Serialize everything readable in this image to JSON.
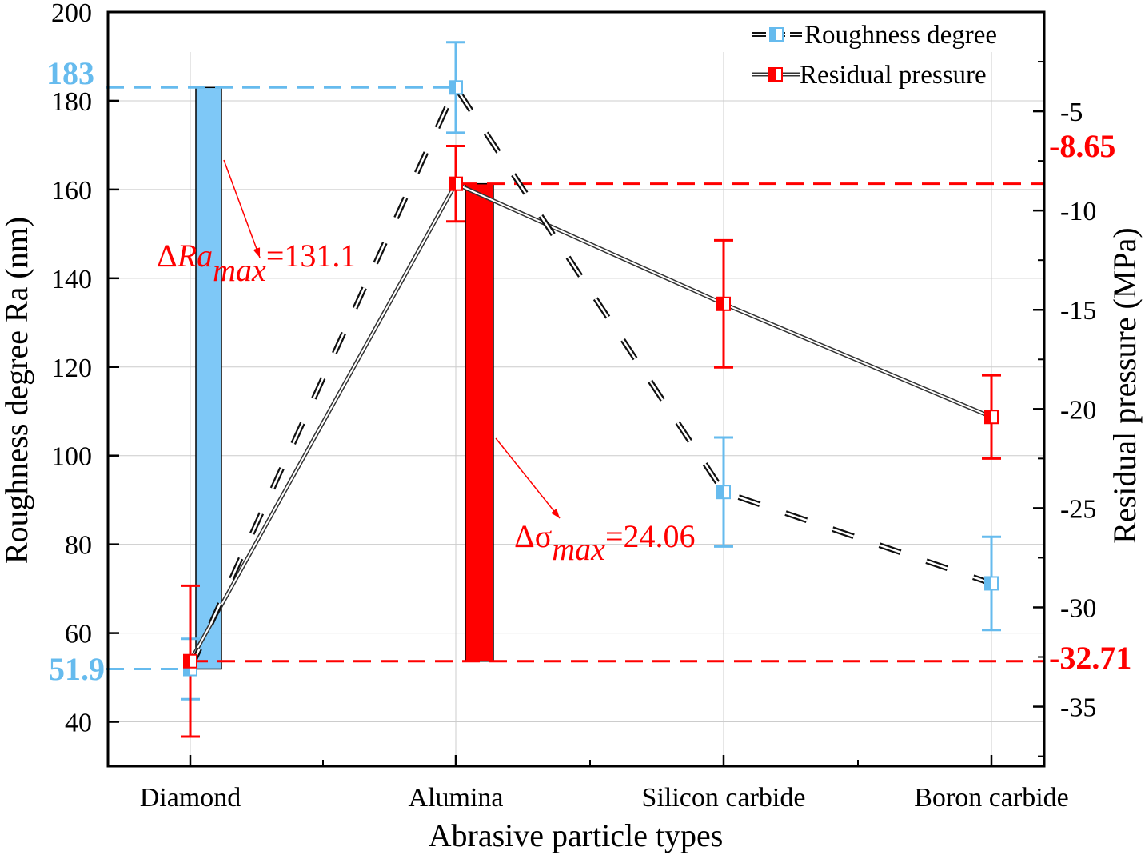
{
  "colors": {
    "roughness": "#66bbee",
    "roughness_bar": "#7ec8f7",
    "pressure": "#ff0000",
    "pressure_bar": "#ff0000",
    "line": "#222222",
    "grid": "#cccccc"
  },
  "chart_data": {
    "type": "line",
    "title": "",
    "xlabel": "Abrasive particle types",
    "ylabel_left": "Roughness degree Ra (nm)",
    "ylabel_right": "Residual pressure (MPa)",
    "categories": [
      "Diamond",
      "Alumina",
      "Silicon carbide",
      "Boron carbide"
    ],
    "ylim_left": [
      30,
      200
    ],
    "yticks_left": [
      40,
      60,
      80,
      100,
      120,
      140,
      160,
      180,
      200
    ],
    "ylim_right": [
      -38,
      0
    ],
    "yticks_right": [
      -35,
      -30,
      -25,
      -20,
      -15,
      -10,
      -5
    ],
    "grid": true,
    "legend_position": "top-right",
    "series": [
      {
        "name": "Roughness degree",
        "axis": "left",
        "line_style": "dashed",
        "values": [
          51.9,
          183,
          91.8,
          71.2
        ],
        "error": [
          6.8,
          10.2,
          12.3,
          10.5
        ]
      },
      {
        "name": "Residual pressure",
        "axis": "right",
        "line_style": "solid",
        "values": [
          -32.71,
          -8.65,
          -14.7,
          -20.4
        ],
        "error": [
          3.8,
          1.9,
          3.2,
          2.1
        ]
      }
    ],
    "range_bars": [
      {
        "series": "Roughness degree",
        "category": "Diamond",
        "from": 51.9,
        "to": 183
      },
      {
        "series": "Residual pressure",
        "category": "Alumina",
        "from": -32.71,
        "to": -8.65
      }
    ],
    "reference_values": {
      "left_max_label": "183",
      "left_min_label": "51.9",
      "right_max_label": "-8.65",
      "right_min_label": "-32.71",
      "left_max": 183,
      "left_min": 51.9,
      "right_max": -8.65,
      "right_min": -32.71
    },
    "annotations": [
      {
        "id": "ra",
        "delta": "Δ",
        "var": "Ra",
        "sub": "max",
        "value": "=131.1"
      },
      {
        "id": "sigma",
        "delta": "Δσ",
        "var": "",
        "sub": "max",
        "value": "=24.06"
      }
    ]
  }
}
